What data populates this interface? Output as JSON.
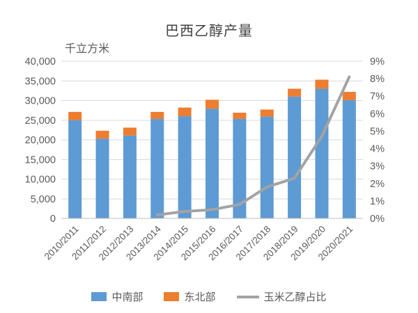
{
  "title": "巴西乙醇产量",
  "unit_label": "千立方米",
  "colors": {
    "central_south": "#5E9AD3",
    "northeast": "#ED7D31",
    "line": "#A3A3A3",
    "gridline": "#D9D9D9",
    "axis_line": "#BFBFBF",
    "tick_text": "#595959",
    "title_text": "#404040",
    "background": "#FFFFFF"
  },
  "legend": {
    "central_south_label": "中南部",
    "northeast_label": "东北部",
    "line_label": "玉米乙醇占比"
  },
  "chart_data": {
    "type": "bar",
    "subtype": "stacked-bars-with-secondary-line",
    "title": "巴西乙醇产量",
    "ylabel": "千立方米",
    "grid": true,
    "legend_position": "bottom",
    "categories": [
      "2010/2011",
      "2011/2012",
      "2012/2013",
      "2013/2014",
      "2014/2015",
      "2015/2016",
      "2016/2017",
      "2017/2018",
      "2018/2019",
      "2019/2020",
      "2020/2021"
    ],
    "series": [
      {
        "name": "中南部",
        "type": "bar",
        "stacked": true,
        "axis": "left",
        "values": [
          25000,
          20300,
          21100,
          25300,
          26000,
          27900,
          25300,
          25900,
          31000,
          33000,
          30100
        ]
      },
      {
        "name": "东北部",
        "type": "bar",
        "stacked": true,
        "axis": "left",
        "values": [
          2100,
          2000,
          2000,
          1800,
          2200,
          2300,
          1600,
          1800,
          2000,
          2300,
          2100
        ]
      },
      {
        "name": "玉米乙醇占比",
        "type": "line",
        "axis": "right",
        "values": [
          null,
          null,
          null,
          0.2,
          0.4,
          0.5,
          0.8,
          1.8,
          2.3,
          4.7,
          8.1
        ]
      }
    ],
    "left_axis": {
      "min": 0,
      "max": 40000,
      "step": 5000,
      "tick_labels": [
        "0",
        "5,000",
        "10,000",
        "15,000",
        "20,000",
        "25,000",
        "30,000",
        "35,000",
        "40,000"
      ]
    },
    "right_axis": {
      "min": 0,
      "max": 9,
      "step": 1,
      "tick_labels": [
        "0%",
        "1%",
        "2%",
        "3%",
        "4%",
        "5%",
        "6%",
        "7%",
        "8%",
        "9%"
      ]
    }
  }
}
